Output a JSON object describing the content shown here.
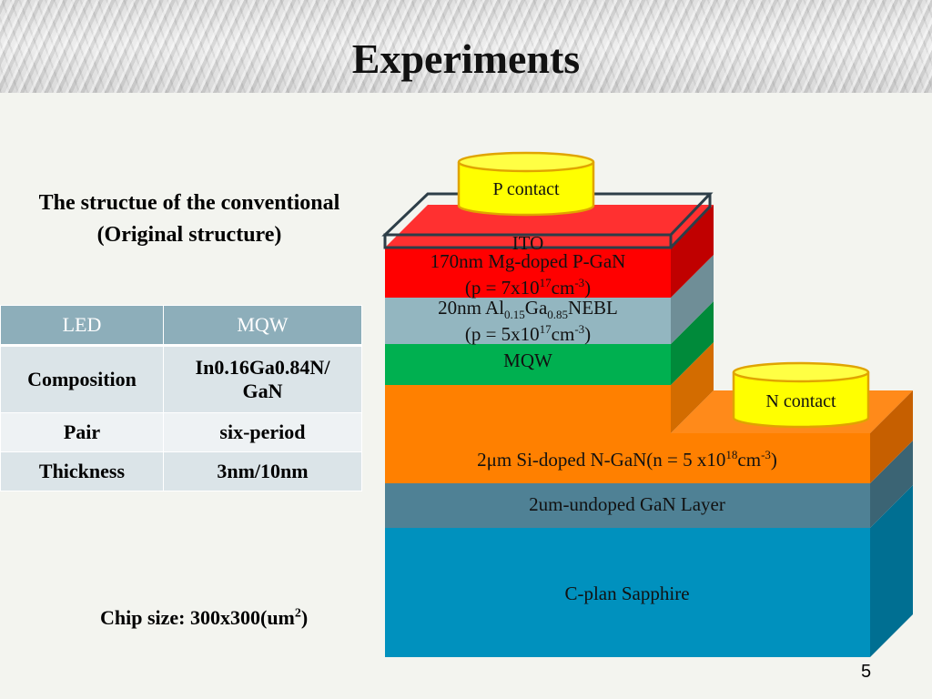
{
  "slide": {
    "title": "Experiments",
    "subtitle_line1": "The structue of the conventional",
    "subtitle_line2": "(Original structure)",
    "chip_prefix": "Chip size: 300x300(um",
    "chip_sup": "2",
    "chip_suffix": ")",
    "page_number": "5"
  },
  "table": {
    "headers": [
      "LED",
      "MQW"
    ],
    "rows": [
      {
        "label": "Composition",
        "value_line1": "In0.16Ga0.84N/",
        "value_line2": "GaN"
      },
      {
        "label": "Pair",
        "value": "six-period"
      },
      {
        "label": "Thickness",
        "value": "3nm/10nm"
      }
    ]
  },
  "diagram": {
    "p_contact": "P contact",
    "n_contact": "N contact",
    "ito": "ITO",
    "pgan_line1": "170nm Mg-doped P-GaN",
    "pgan_line2_a": "(p = 7x10",
    "pgan_line2_sup1": "17",
    "pgan_line2_b": "cm",
    "pgan_line2_sup2": "-3",
    "pgan_line2_c": ")",
    "ebl_line1_a": "20nm Al",
    "ebl_line1_sub1": "0.15",
    "ebl_line1_b": "Ga",
    "ebl_line1_sub2": "0.85",
    "ebl_line1_c": "NEBL",
    "ebl_line2_a": "(p = 5x10",
    "ebl_line2_sup1": "17",
    "ebl_line2_b": "cm",
    "ebl_line2_sup2": "-3",
    "ebl_line2_c": ")",
    "mqw": "MQW",
    "ngan_a": "2μm  Si-doped N-GaN(n = 5 x10",
    "ngan_sup1": "18",
    "ngan_b": "cm",
    "ngan_sup2": "-3",
    "ngan_c": ")",
    "undoped": "2um-undoped GaN Layer",
    "sapphire": "C-plan Sapphire"
  },
  "colors": {
    "pgan": "#ff0000",
    "ebl": "#93b6c0",
    "mqw": "#00b050",
    "ngan": "#ff8000",
    "undoped": "#4f8195",
    "sapphire": "#0091be",
    "contact": "#ffff00"
  }
}
